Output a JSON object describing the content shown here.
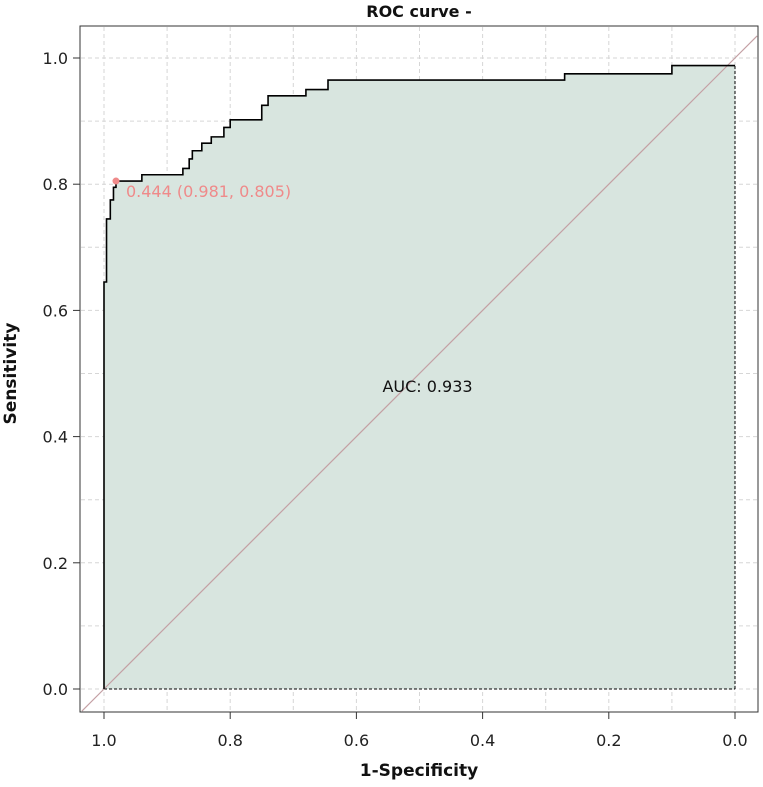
{
  "chart_data": {
    "type": "line",
    "title": "ROC curve -",
    "xlabel": "1-Specificity",
    "ylabel": "Sensitivity",
    "x_reversed": true,
    "xlim": [
      1.0,
      0.0
    ],
    "ylim": [
      0.0,
      1.0
    ],
    "x_ticks": [
      "1.0",
      "0.8",
      "0.6",
      "0.4",
      "0.2",
      "0.0"
    ],
    "y_ticks": [
      "0.0",
      "0.2",
      "0.4",
      "0.6",
      "0.8",
      "1.0"
    ],
    "grid": true,
    "series": [
      {
        "name": "ROC",
        "x_label": "Specificity",
        "points": [
          [
            1.0,
            0.0
          ],
          [
            1.0,
            0.645
          ],
          [
            0.996,
            0.645
          ],
          [
            0.996,
            0.745
          ],
          [
            0.99,
            0.745
          ],
          [
            0.99,
            0.775
          ],
          [
            0.985,
            0.775
          ],
          [
            0.985,
            0.795
          ],
          [
            0.981,
            0.795
          ],
          [
            0.981,
            0.805
          ],
          [
            0.94,
            0.805
          ],
          [
            0.94,
            0.815
          ],
          [
            0.875,
            0.815
          ],
          [
            0.875,
            0.825
          ],
          [
            0.865,
            0.825
          ],
          [
            0.865,
            0.84
          ],
          [
            0.86,
            0.84
          ],
          [
            0.86,
            0.853
          ],
          [
            0.845,
            0.853
          ],
          [
            0.845,
            0.865
          ],
          [
            0.83,
            0.865
          ],
          [
            0.83,
            0.875
          ],
          [
            0.81,
            0.875
          ],
          [
            0.81,
            0.89
          ],
          [
            0.8,
            0.89
          ],
          [
            0.8,
            0.902
          ],
          [
            0.75,
            0.902
          ],
          [
            0.75,
            0.925
          ],
          [
            0.74,
            0.925
          ],
          [
            0.74,
            0.94
          ],
          [
            0.68,
            0.94
          ],
          [
            0.68,
            0.95
          ],
          [
            0.645,
            0.95
          ],
          [
            0.645,
            0.965
          ],
          [
            0.27,
            0.965
          ],
          [
            0.27,
            0.975
          ],
          [
            0.1,
            0.975
          ],
          [
            0.1,
            0.988
          ],
          [
            0.0,
            0.988
          ]
        ]
      }
    ],
    "auc_label": "AUC: 0.933",
    "auc_label_pos": [
      0.5,
      0.48
    ],
    "best_threshold": {
      "specificity": 0.981,
      "sensitivity": 0.805,
      "label": "0.444 (0.981, 0.805)"
    },
    "colors": {
      "roc_line": "#000000",
      "auc_fill": "#d8e5df",
      "diagonal": "#c4a0a4",
      "threshold": "#ef8a8a",
      "grid": "#d6d6d6",
      "axis": "#333333",
      "text": "#111111"
    }
  }
}
